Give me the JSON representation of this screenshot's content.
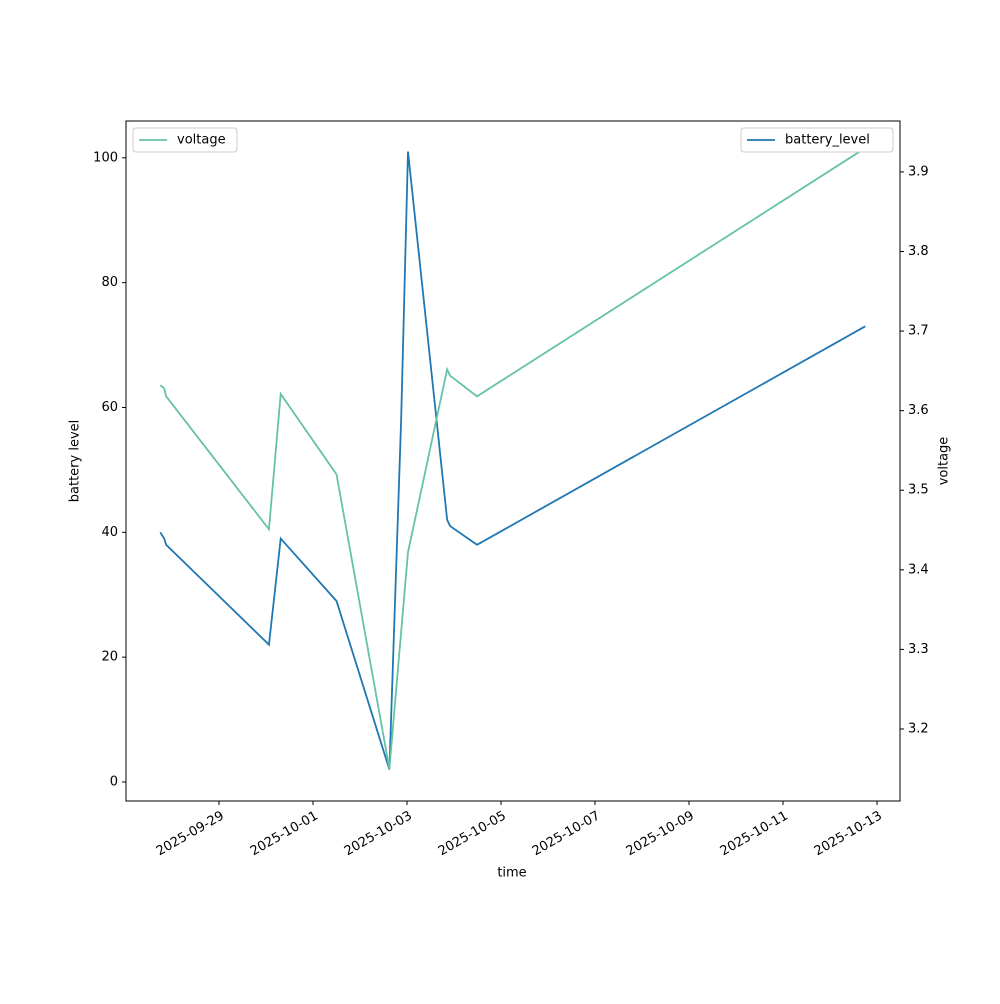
{
  "chart_data": {
    "type": "line",
    "xlabel": "time",
    "ylabel": "battery level",
    "y2label": "voltage",
    "x": [
      "2025-09-27T18:00",
      "2025-09-27T20:00",
      "2025-09-27T21:00",
      "2025-09-30T01:30",
      "2025-09-30T07:30",
      "2025-10-01T12:00",
      "2025-10-02T15:00",
      "2025-10-02T21:00",
      "2025-10-03T00:30",
      "2025-10-03T20:30",
      "2025-10-03T22:00",
      "2025-10-04T11:45",
      "2025-10-12T18:00"
    ],
    "series": [
      {
        "name": "battery_level",
        "color": "#1f77b4",
        "axis": "y",
        "legend": "upper right",
        "values": [
          40,
          39,
          38,
          22,
          39,
          29,
          2,
          58,
          101,
          42,
          41,
          38,
          73
        ]
      },
      {
        "name": "voltage",
        "color": "#66c2a5",
        "axis": "y2",
        "legend": "upper left",
        "values": [
          3.632,
          3.628,
          3.618,
          3.451,
          3.621,
          3.52,
          3.15,
          3.322,
          3.422,
          3.652,
          3.644,
          3.618,
          3.93
        ]
      }
    ],
    "xlim": [
      "2025-09-27T00:30",
      "2025-10-13T11:45"
    ],
    "xticks": [
      "2025-09-29",
      "2025-10-01",
      "2025-10-03",
      "2025-10-05",
      "2025-10-07",
      "2025-10-09",
      "2025-10-11",
      "2025-10-13"
    ],
    "ylim": [
      -3.05,
      105.9
    ],
    "yticks": [
      0,
      20,
      40,
      60,
      80,
      100
    ],
    "y2lim": [
      3.1095,
      3.964
    ],
    "y2ticks": [
      3.2,
      3.3,
      3.4,
      3.5,
      3.6,
      3.7,
      3.8,
      3.9
    ]
  }
}
